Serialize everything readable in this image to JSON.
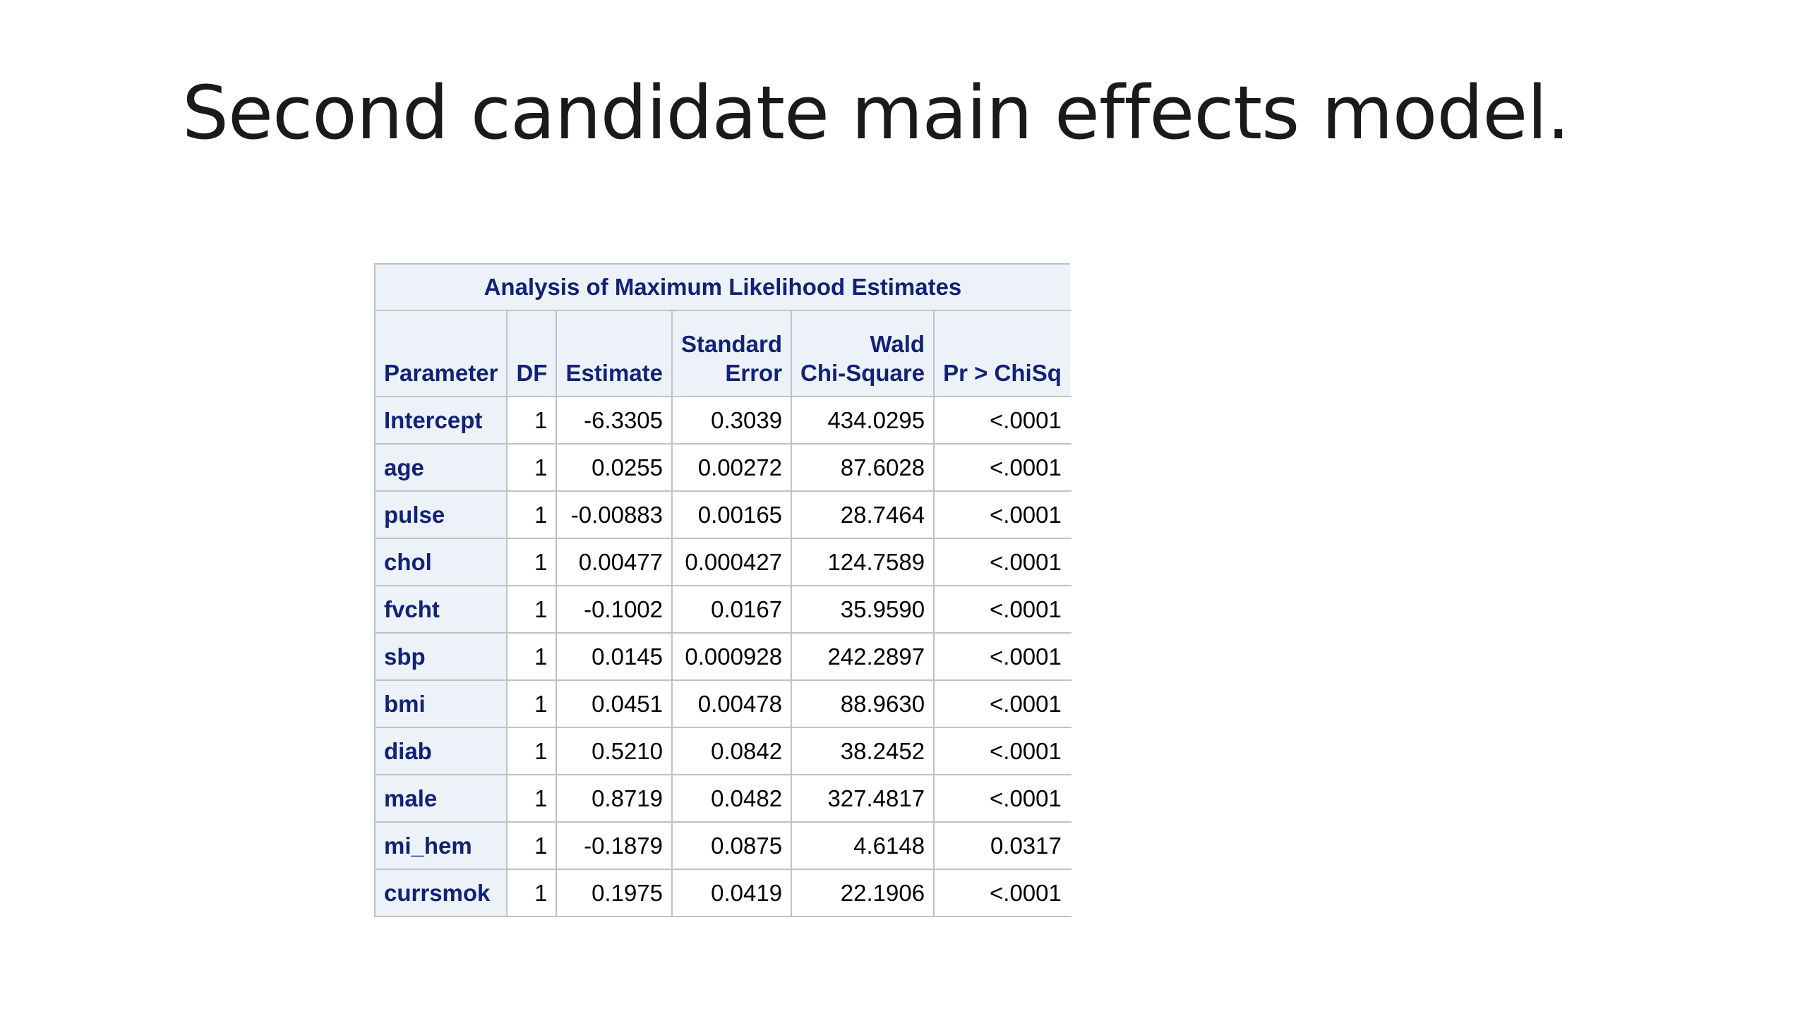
{
  "slide": {
    "title": "Second candidate main effects model."
  },
  "table": {
    "caption": "Analysis of Maximum Likelihood Estimates",
    "headers": {
      "parameter": "Parameter",
      "df": "DF",
      "estimate": "Estimate",
      "se_line1": "Standard",
      "se_line2": "Error",
      "wald_line1": "Wald",
      "wald_line2": "Chi-Square",
      "p": "Pr > ChiSq"
    },
    "rows": [
      {
        "parameter": "Intercept",
        "df": "1",
        "estimate": "-6.3305",
        "se": "0.3039",
        "wald": "434.0295",
        "p": "<.0001"
      },
      {
        "parameter": "age",
        "df": "1",
        "estimate": "0.0255",
        "se": "0.00272",
        "wald": "87.6028",
        "p": "<.0001"
      },
      {
        "parameter": "pulse",
        "df": "1",
        "estimate": "-0.00883",
        "se": "0.00165",
        "wald": "28.7464",
        "p": "<.0001"
      },
      {
        "parameter": "chol",
        "df": "1",
        "estimate": "0.00477",
        "se": "0.000427",
        "wald": "124.7589",
        "p": "<.0001"
      },
      {
        "parameter": "fvcht",
        "df": "1",
        "estimate": "-0.1002",
        "se": "0.0167",
        "wald": "35.9590",
        "p": "<.0001"
      },
      {
        "parameter": "sbp",
        "df": "1",
        "estimate": "0.0145",
        "se": "0.000928",
        "wald": "242.2897",
        "p": "<.0001"
      },
      {
        "parameter": "bmi",
        "df": "1",
        "estimate": "0.0451",
        "se": "0.00478",
        "wald": "88.9630",
        "p": "<.0001"
      },
      {
        "parameter": "diab",
        "df": "1",
        "estimate": "0.5210",
        "se": "0.0842",
        "wald": "38.2452",
        "p": "<.0001"
      },
      {
        "parameter": "male",
        "df": "1",
        "estimate": "0.8719",
        "se": "0.0482",
        "wald": "327.4817",
        "p": "<.0001"
      },
      {
        "parameter": "mi_hem",
        "df": "1",
        "estimate": "-0.1879",
        "se": "0.0875",
        "wald": "4.6148",
        "p": "0.0317"
      },
      {
        "parameter": "currsmok",
        "df": "1",
        "estimate": "0.1975",
        "se": "0.0419",
        "wald": "22.1906",
        "p": "<.0001"
      }
    ]
  }
}
